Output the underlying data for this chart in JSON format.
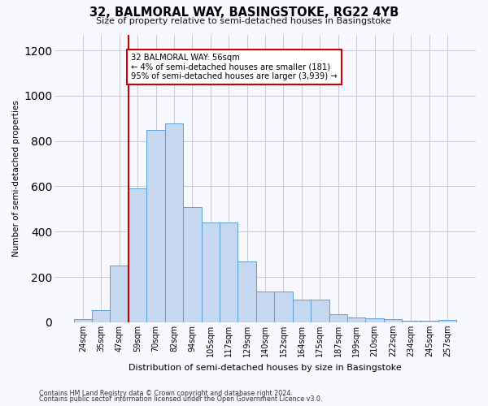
{
  "title1": "32, BALMORAL WAY, BASINGSTOKE, RG22 4YB",
  "title2": "Size of property relative to semi-detached houses in Basingstoke",
  "xlabel": "Distribution of semi-detached houses by size in Basingstoke",
  "ylabel": "Number of semi-detached properties",
  "categories": [
    "24sqm",
    "35sqm",
    "47sqm",
    "59sqm",
    "70sqm",
    "82sqm",
    "94sqm",
    "105sqm",
    "117sqm",
    "129sqm",
    "140sqm",
    "152sqm",
    "164sqm",
    "175sqm",
    "187sqm",
    "199sqm",
    "210sqm",
    "222sqm",
    "234sqm",
    "245sqm",
    "257sqm"
  ],
  "bar_heights": [
    15,
    52,
    250,
    590,
    848,
    878,
    510,
    440,
    440,
    270,
    135,
    135,
    100,
    100,
    35,
    22,
    18,
    15,
    5,
    5,
    12
  ],
  "bar_color": "#c5d8f0",
  "bar_edge_color": "#5a9fd4",
  "vline_x_index": 3.0,
  "annotation_text": "32 BALMORAL WAY: 56sqm\n← 4% of semi-detached houses are smaller (181)\n95% of semi-detached houses are larger (3,939) →",
  "annotation_box_color": "#ffffff",
  "annotation_box_edge": "#cc0000",
  "vline_color": "#cc0000",
  "ylim": [
    0,
    1270
  ],
  "yticks": [
    0,
    200,
    400,
    600,
    800,
    1000,
    1200
  ],
  "grid_color": "#c8c8d8",
  "footnote1": "Contains HM Land Registry data © Crown copyright and database right 2024.",
  "footnote2": "Contains public sector information licensed under the Open Government Licence v3.0.",
  "bg_color": "#f8f8ff"
}
